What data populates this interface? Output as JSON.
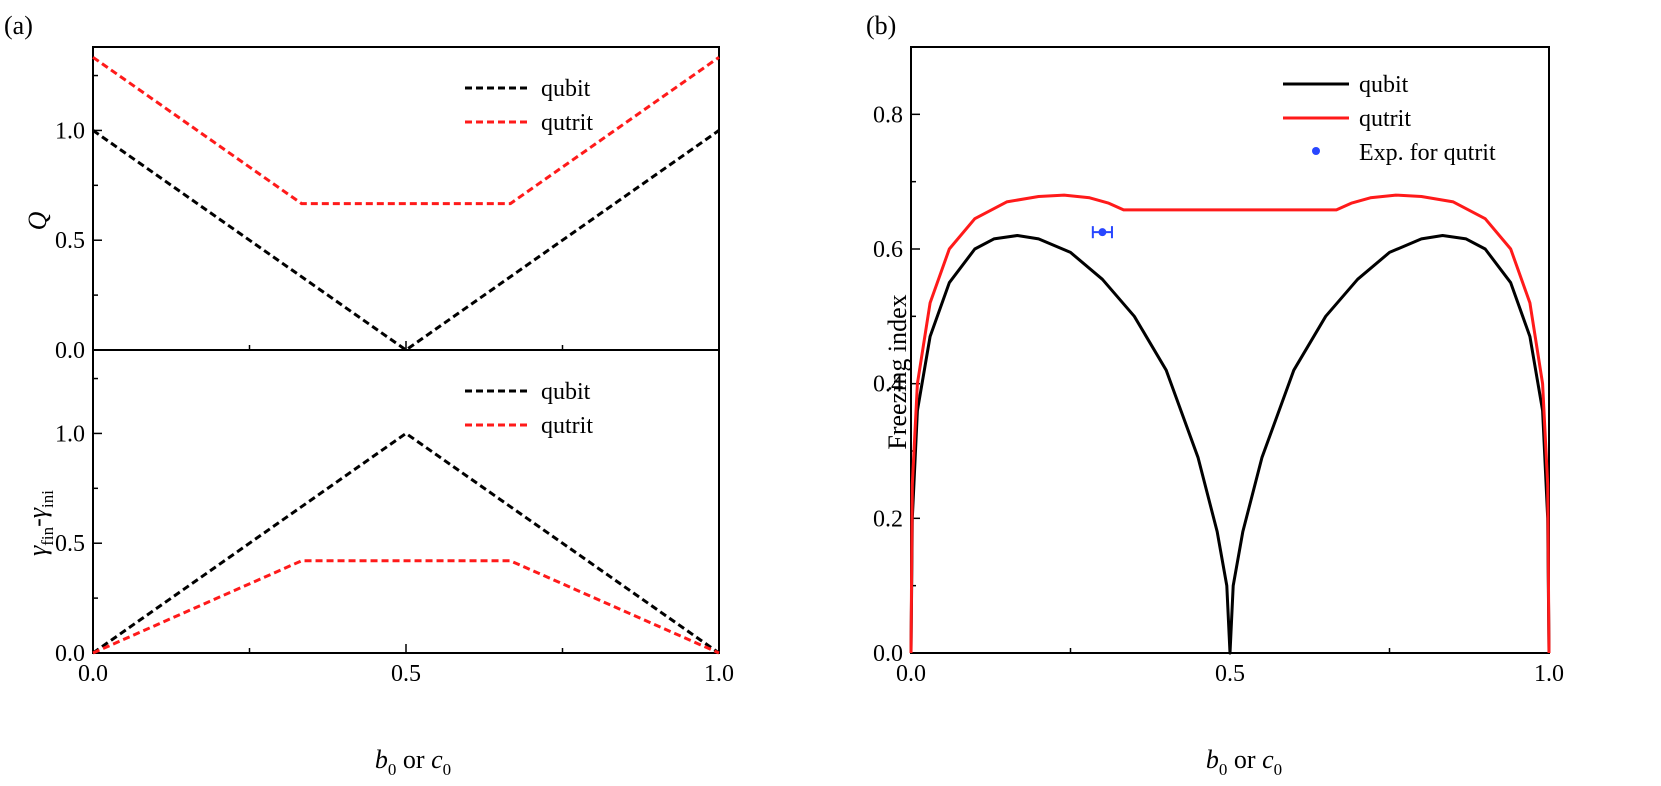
{
  "panel_labels": {
    "a": "(a)",
    "b": "(b)"
  },
  "colors": {
    "qubit": "#000000",
    "qutrit": "#ff1a1a",
    "experiment": "#2846ff"
  },
  "chart_data": [
    {
      "id": "a_top",
      "type": "line",
      "ylabel": "Q",
      "xlim": [
        0,
        1
      ],
      "ylim": [
        0,
        1.38
      ],
      "x_ticks": [
        0,
        0.5,
        1
      ],
      "y_ticks": [
        0,
        0.5,
        1
      ],
      "y_tick_labels": [
        "0.0",
        "0.5",
        "1.0"
      ],
      "line_style": "dashed",
      "legend": [
        "qubit",
        "qutrit"
      ],
      "legend_position": "top-right",
      "series": [
        {
          "name": "qubit",
          "x": [
            0,
            0.5,
            1
          ],
          "y": [
            1.0,
            0.0,
            1.0
          ]
        },
        {
          "name": "qutrit",
          "x": [
            0,
            0.3333,
            0.6667,
            1
          ],
          "y": [
            1.3333,
            0.6667,
            0.6667,
            1.3333
          ]
        }
      ]
    },
    {
      "id": "a_bottom",
      "type": "line",
      "ylabel_parts": {
        "gamma": "γ",
        "sub_fin": "fin",
        "dash": "-",
        "sub_ini": "ini"
      },
      "xlabel_parts": {
        "b": "b",
        "b_sub": "0",
        "or": " or ",
        "c": "c",
        "c_sub": "0"
      },
      "xlim": [
        0,
        1
      ],
      "ylim": [
        0,
        1.38
      ],
      "x_ticks": [
        0,
        0.5,
        1
      ],
      "x_tick_labels": [
        "0.0",
        "0.5",
        "1.0"
      ],
      "y_ticks": [
        0,
        0.5,
        1
      ],
      "y_tick_labels": [
        "0.0",
        "0.5",
        "1.0"
      ],
      "line_style": "dashed",
      "legend": [
        "qubit",
        "qutrit"
      ],
      "legend_position": "top-right",
      "series": [
        {
          "name": "qubit",
          "x": [
            0,
            0.5,
            1
          ],
          "y": [
            0.0,
            1.0,
            0.0
          ]
        },
        {
          "name": "qutrit",
          "x": [
            0,
            0.3333,
            0.6667,
            1
          ],
          "y": [
            0.0,
            0.42,
            0.42,
            0.0
          ]
        }
      ]
    },
    {
      "id": "b",
      "type": "line",
      "ylabel": "Freezing index",
      "xlabel_parts": {
        "b": "b",
        "b_sub": "0",
        "or": " or ",
        "c": "c",
        "c_sub": "0"
      },
      "xlim": [
        0,
        1
      ],
      "ylim": [
        0,
        0.9
      ],
      "x_ticks": [
        0,
        0.5,
        1
      ],
      "x_tick_labels": [
        "0.0",
        "0.5",
        "1.0"
      ],
      "y_ticks": [
        0,
        0.2,
        0.4,
        0.6,
        0.8
      ],
      "y_tick_labels": [
        "0.0",
        "0.2",
        "0.4",
        "0.6",
        "0.8"
      ],
      "line_style": "solid",
      "legend": [
        "qubit",
        "qutrit",
        "Exp. for qutrit"
      ],
      "legend_position": "top-right",
      "series": [
        {
          "name": "qubit",
          "x": [
            0,
            0.002,
            0.01,
            0.03,
            0.06,
            0.1,
            0.13,
            0.1667,
            0.2,
            0.25,
            0.3,
            0.35,
            0.4,
            0.45,
            0.48,
            0.495,
            0.5,
            0.505,
            0.52,
            0.55,
            0.6,
            0.65,
            0.7,
            0.75,
            0.8,
            0.8333,
            0.87,
            0.9,
            0.94,
            0.97,
            0.99,
            0.998,
            1
          ],
          "y": [
            0.0,
            0.2,
            0.36,
            0.47,
            0.55,
            0.6,
            0.615,
            0.62,
            0.615,
            0.595,
            0.555,
            0.5,
            0.42,
            0.29,
            0.18,
            0.1,
            0.0,
            0.1,
            0.18,
            0.29,
            0.42,
            0.5,
            0.555,
            0.595,
            0.615,
            0.62,
            0.615,
            0.6,
            0.55,
            0.47,
            0.36,
            0.2,
            0.0
          ]
        },
        {
          "name": "qutrit",
          "x": [
            0,
            0.002,
            0.01,
            0.03,
            0.06,
            0.1,
            0.15,
            0.2,
            0.24,
            0.28,
            0.31,
            0.3333,
            0.5,
            0.6667,
            0.69,
            0.72,
            0.76,
            0.8,
            0.85,
            0.9,
            0.94,
            0.97,
            0.99,
            0.998,
            1
          ],
          "y": [
            0.0,
            0.25,
            0.4,
            0.52,
            0.6,
            0.645,
            0.67,
            0.678,
            0.68,
            0.676,
            0.668,
            0.658,
            0.658,
            0.658,
            0.668,
            0.676,
            0.68,
            0.678,
            0.67,
            0.645,
            0.6,
            0.52,
            0.4,
            0.25,
            0.0
          ]
        },
        {
          "name": "Exp. for qutrit",
          "type": "scatter",
          "x": [
            0.3
          ],
          "y": [
            0.625
          ],
          "x_err": 0.015,
          "y_err": 0.006
        }
      ]
    }
  ]
}
